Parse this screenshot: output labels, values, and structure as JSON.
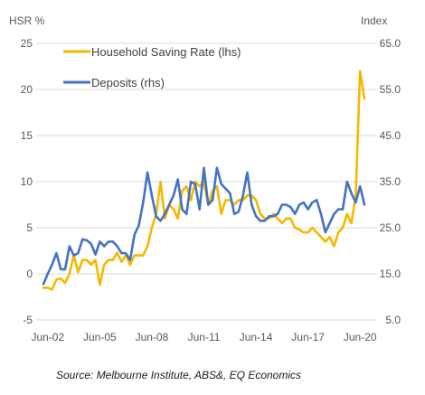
{
  "chart_data": {
    "type": "line",
    "left_axis_label": "HSR %",
    "right_axis_label": "Index",
    "left_ylim": [
      -5,
      25
    ],
    "right_ylim": [
      5,
      65
    ],
    "left_ticks": [
      "-5",
      "0",
      "5",
      "10",
      "15",
      "20",
      "25"
    ],
    "right_ticks": [
      "5.0",
      "15.0",
      "25.0",
      "35.0",
      "45.0",
      "55.0",
      "65.0"
    ],
    "x_ticks": [
      "Jun-02",
      "Jun-05",
      "Jun-08",
      "Jun-11",
      "Jun-14",
      "Jun-17",
      "Jun-20"
    ],
    "grid": true,
    "legend_position": "top-left",
    "series": [
      {
        "name": "Household Saving Rate (lhs)",
        "axis": "left",
        "color": "#F5B800",
        "x": [
          2002.25,
          2002.5,
          2002.75,
          2003.0,
          2003.25,
          2003.5,
          2003.75,
          2004.0,
          2004.25,
          2004.5,
          2004.75,
          2005.0,
          2005.25,
          2005.5,
          2005.75,
          2006.0,
          2006.25,
          2006.5,
          2006.75,
          2007.0,
          2007.25,
          2007.5,
          2007.75,
          2008.0,
          2008.25,
          2008.5,
          2008.75,
          2009.0,
          2009.25,
          2009.5,
          2009.75,
          2010.0,
          2010.25,
          2010.5,
          2010.75,
          2011.0,
          2011.25,
          2011.5,
          2011.75,
          2012.0,
          2012.25,
          2012.5,
          2012.75,
          2013.0,
          2013.25,
          2013.5,
          2013.75,
          2014.0,
          2014.25,
          2014.5,
          2014.75,
          2015.0,
          2015.25,
          2015.5,
          2015.75,
          2016.0,
          2016.25,
          2016.5,
          2016.75,
          2017.0,
          2017.25,
          2017.5,
          2017.75,
          2018.0,
          2018.25,
          2018.5,
          2018.75,
          2019.0,
          2019.25,
          2019.5,
          2019.75,
          2020.0,
          2020.25,
          2020.5,
          2020.75
        ],
        "values": [
          -1.5,
          -1.5,
          -1.7,
          -0.6,
          -0.5,
          -1.0,
          0.0,
          2.0,
          0.2,
          1.5,
          1.5,
          1.0,
          1.5,
          -1.2,
          1.0,
          1.5,
          1.5,
          2.3,
          1.3,
          2.0,
          1.0,
          2.0,
          2.0,
          2.0,
          3.0,
          5.0,
          6.5,
          10.0,
          6.0,
          7.5,
          7.0,
          6.0,
          9.0,
          9.5,
          8.0,
          10.0,
          9.5,
          10.0,
          7.5,
          9.0,
          9.5,
          6.5,
          8.0,
          8.0,
          7.5,
          8.0,
          8.0,
          8.5,
          8.5,
          8.0,
          6.5,
          6.0,
          6.0,
          6.5,
          6.0,
          5.5,
          6.0,
          6.0,
          5.0,
          4.8,
          4.5,
          4.5,
          5.0,
          4.5,
          4.0,
          3.5,
          4.0,
          3.0,
          4.5,
          5.0,
          6.5,
          5.5,
          8.5,
          22.0,
          19.0
        ]
      },
      {
        "name": "Deposits (rhs)",
        "axis": "right",
        "color": "#4472C4",
        "x": [
          2002.25,
          2002.5,
          2002.75,
          2003.0,
          2003.25,
          2003.5,
          2003.75,
          2004.0,
          2004.25,
          2004.5,
          2004.75,
          2005.0,
          2005.25,
          2005.5,
          2005.75,
          2006.0,
          2006.25,
          2006.5,
          2006.75,
          2007.0,
          2007.25,
          2007.5,
          2007.75,
          2008.0,
          2008.25,
          2008.5,
          2008.75,
          2009.0,
          2009.25,
          2009.5,
          2009.75,
          2010.0,
          2010.25,
          2010.5,
          2010.75,
          2011.0,
          2011.25,
          2011.5,
          2011.75,
          2012.0,
          2012.25,
          2012.5,
          2012.75,
          2013.0,
          2013.25,
          2013.5,
          2013.75,
          2014.0,
          2014.25,
          2014.5,
          2014.75,
          2015.0,
          2015.25,
          2015.5,
          2015.75,
          2016.0,
          2016.25,
          2016.5,
          2016.75,
          2017.0,
          2017.25,
          2017.5,
          2017.75,
          2018.0,
          2018.25,
          2018.5,
          2018.75,
          2019.0,
          2019.25,
          2019.5,
          2019.75,
          2020.0,
          2020.25,
          2020.5,
          2020.75
        ],
        "values": [
          12.8,
          15.0,
          17.0,
          19.5,
          16.0,
          16.0,
          21.0,
          19.0,
          19.5,
          22.5,
          22.3,
          21.5,
          19.2,
          22.0,
          21.0,
          22.0,
          22.0,
          21.0,
          19.5,
          19.5,
          18.0,
          23.5,
          25.5,
          30.5,
          37.0,
          32.0,
          27.5,
          26.5,
          28.0,
          30.0,
          32.0,
          35.5,
          29.0,
          28.0,
          35.0,
          34.5,
          29.0,
          38.0,
          30.0,
          31.0,
          38.0,
          34.5,
          33.5,
          32.5,
          28.0,
          28.5,
          32.0,
          37.0,
          30.0,
          27.5,
          26.5,
          26.5,
          27.5,
          27.5,
          28.0,
          30.0,
          30.0,
          29.5,
          28.0,
          30.0,
          30.5,
          29.0,
          30.5,
          31.0,
          28.0,
          24.0,
          26.0,
          28.0,
          29.0,
          29.0,
          35.0,
          32.5,
          30.5,
          34.0,
          30.0
        ]
      }
    ]
  },
  "source_text": "Source: Melbourne Institute, ABS&, EQ Economics"
}
